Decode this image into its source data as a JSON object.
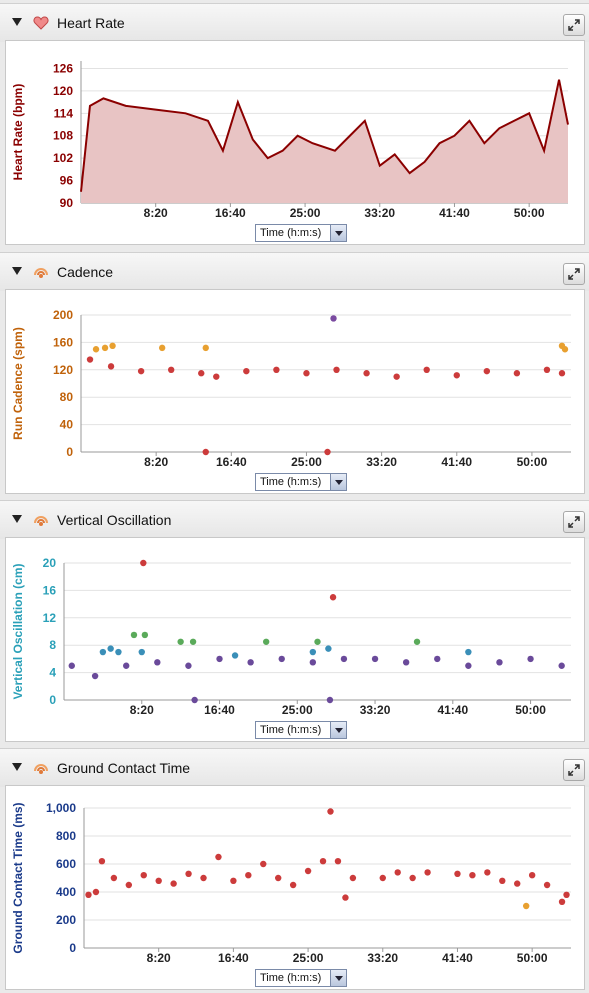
{
  "panels": [
    {
      "title": "Heart Rate",
      "icon": "heart-icon",
      "ylabel": "Heart Rate (bpm)",
      "axis_color": "#8a0000",
      "select_label": "Time (h:m:s)",
      "xticks": [
        "8:20",
        "16:40",
        "25:00",
        "33:20",
        "41:40",
        "50:00"
      ],
      "yticks": [
        "90",
        "96",
        "102",
        "108",
        "114",
        "120",
        "126"
      ]
    },
    {
      "title": "Cadence",
      "icon": "running-dynamics-icon",
      "ylabel": "Run Cadence (spm)",
      "axis_color": "#c0620a",
      "select_label": "Time (h:m:s)",
      "xticks": [
        "8:20",
        "16:40",
        "25:00",
        "33:20",
        "41:40",
        "50:00"
      ],
      "yticks": [
        "0",
        "40",
        "80",
        "120",
        "160",
        "200"
      ]
    },
    {
      "title": "Vertical Oscillation",
      "icon": "running-dynamics-icon",
      "ylabel": "Vertical Oscillation (cm)",
      "axis_color": "#2aa0b8",
      "select_label": "Time (h:m:s)",
      "xticks": [
        "8:20",
        "16:40",
        "25:00",
        "33:20",
        "41:40",
        "50:00"
      ],
      "yticks": [
        "0",
        "4",
        "8",
        "12",
        "16",
        "20"
      ]
    },
    {
      "title": "Ground Contact Time",
      "icon": "running-dynamics-icon",
      "ylabel": "Ground Contact Time (ms)",
      "axis_color": "#1a3a8a",
      "select_label": "Time (h:m:s)",
      "xticks": [
        "8:20",
        "16:40",
        "25:00",
        "33:20",
        "41:40",
        "50:00"
      ],
      "yticks": [
        "0",
        "200",
        "400",
        "600",
        "800",
        "1,000"
      ]
    }
  ],
  "chart_data": [
    {
      "type": "area",
      "ylabel": "Heart Rate (bpm)",
      "xlabel": "Time (h:m:s)",
      "ylim": [
        90,
        128
      ],
      "xlim_seconds": [
        0,
        3260
      ],
      "color": "#8b0000",
      "fill": "#e8c4c4",
      "x": [
        0,
        60,
        150,
        300,
        500,
        700,
        850,
        950,
        1050,
        1150,
        1250,
        1350,
        1450,
        1550,
        1700,
        1800,
        1900,
        2000,
        2100,
        2200,
        2300,
        2400,
        2500,
        2600,
        2700,
        2800,
        2900,
        3000,
        3100,
        3200,
        3260
      ],
      "y": [
        93,
        116,
        118,
        116,
        115,
        114,
        112,
        104,
        117,
        107,
        102,
        104,
        108,
        106,
        104,
        108,
        112,
        100,
        103,
        98,
        101,
        106,
        108,
        112,
        106,
        110,
        112,
        114,
        104,
        123,
        111
      ]
    },
    {
      "type": "scatter",
      "ylabel": "Run Cadence (spm)",
      "xlabel": "Time (h:m:s)",
      "ylim": [
        0,
        200
      ],
      "xlim_seconds": [
        0,
        3260
      ],
      "series": [
        {
          "color": "#cc3b3b",
          "x": [
            60,
            200,
            400,
            600,
            800,
            900,
            1100,
            1300,
            1500,
            1700,
            1900,
            2100,
            2300,
            2500,
            2700,
            2900,
            3100,
            3200
          ],
          "y": [
            135,
            125,
            118,
            120,
            115,
            110,
            118,
            120,
            115,
            120,
            115,
            110,
            120,
            112,
            118,
            115,
            120,
            115
          ]
        },
        {
          "color": "#e8a030",
          "x": [
            100,
            160,
            210,
            540,
            830,
            3200,
            3220
          ],
          "y": [
            150,
            152,
            155,
            152,
            152,
            155,
            150
          ]
        },
        {
          "color": "#7a4aa0",
          "x": [
            1680
          ],
          "y": [
            195
          ]
        },
        {
          "color": "#cc3b3b",
          "x": [
            830,
            1640
          ],
          "y": [
            0,
            0
          ]
        }
      ]
    },
    {
      "type": "scatter",
      "ylabel": "Vertical Oscillation (cm)",
      "xlabel": "Time (h:m:s)",
      "ylim": [
        0,
        20
      ],
      "xlim_seconds": [
        0,
        3260
      ],
      "series": [
        {
          "color": "#6a4a9a",
          "x": [
            50,
            200,
            400,
            600,
            800,
            1000,
            1200,
            1400,
            1600,
            1800,
            2000,
            2200,
            2400,
            2600,
            2800,
            3000,
            3200
          ],
          "y": [
            5,
            3.5,
            5,
            5.5,
            5,
            6,
            5.5,
            6,
            5.5,
            6,
            6,
            5.5,
            6,
            5,
            5.5,
            6,
            5
          ]
        },
        {
          "color": "#3a8fb8",
          "x": [
            250,
            300,
            350,
            500,
            1100,
            1600,
            1700,
            2600
          ],
          "y": [
            7,
            7.5,
            7,
            7,
            6.5,
            7,
            7.5,
            7
          ]
        },
        {
          "color": "#5aaa5a",
          "x": [
            450,
            520,
            750,
            830,
            1300,
            1630,
            2270
          ],
          "y": [
            9.5,
            9.5,
            8.5,
            8.5,
            8.5,
            8.5,
            8.5
          ]
        },
        {
          "color": "#cc3b3b",
          "x": [
            510,
            1730
          ],
          "y": [
            20,
            15
          ]
        },
        {
          "color": "#6a4a9a",
          "x": [
            840,
            1710
          ],
          "y": [
            0,
            0
          ]
        }
      ]
    },
    {
      "type": "scatter",
      "ylabel": "Ground Contact Time (ms)",
      "xlabel": "Time (h:m:s)",
      "ylim": [
        0,
        1000
      ],
      "xlim_seconds": [
        0,
        3260
      ],
      "series": [
        {
          "color": "#cc3b3b",
          "x": [
            30,
            80,
            120,
            200,
            300,
            400,
            500,
            600,
            700,
            800,
            900,
            1000,
            1100,
            1200,
            1300,
            1400,
            1500,
            1600,
            1650,
            1700,
            1750,
            1800,
            2000,
            2100,
            2200,
            2300,
            2500,
            2600,
            2700,
            2800,
            2900,
            3000,
            3100,
            3200,
            3230
          ],
          "y": [
            380,
            400,
            620,
            500,
            450,
            520,
            480,
            460,
            530,
            500,
            650,
            480,
            520,
            600,
            500,
            450,
            550,
            620,
            975,
            620,
            360,
            500,
            500,
            540,
            500,
            540,
            530,
            520,
            540,
            480,
            460,
            520,
            450,
            330,
            380
          ]
        },
        {
          "color": "#e8a030",
          "x": [
            2960
          ],
          "y": [
            300
          ]
        }
      ]
    }
  ]
}
